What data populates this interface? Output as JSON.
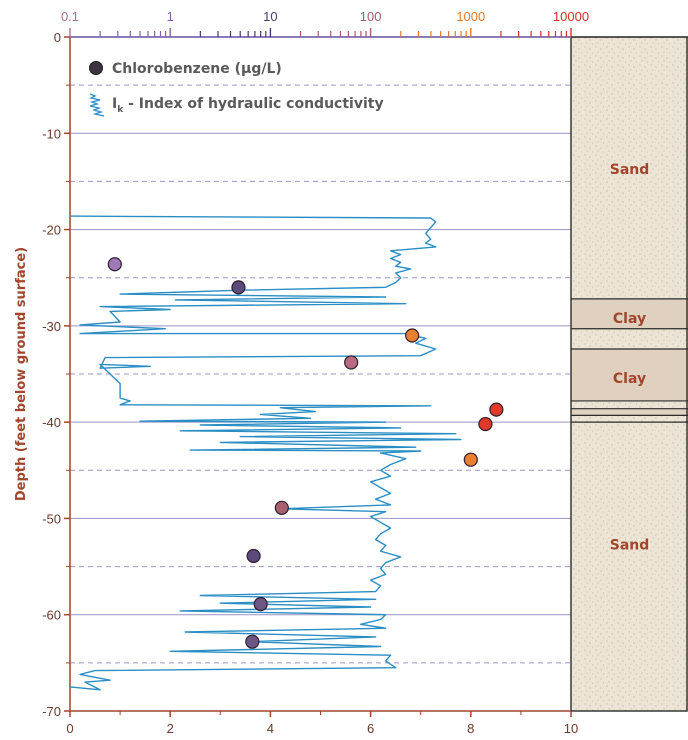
{
  "chart_data": {
    "type": "scatter",
    "ylabel": "Depth (feet below ground surface)",
    "ylim": [
      -70,
      0
    ],
    "yticks": [
      "0",
      "-10",
      "-20",
      "-30",
      "-40",
      "-50",
      "-60",
      "-70"
    ],
    "xlim_bottom": [
      0,
      10
    ],
    "xticks_bottom": [
      "0",
      "2",
      "4",
      "6",
      "8",
      "10"
    ],
    "top_axis": {
      "scale": "log",
      "range": [
        0.1,
        10000
      ],
      "ticks": [
        {
          "label": "0.1",
          "value": 0.1,
          "color": "#b06a9c"
        },
        {
          "label": "1",
          "value": 1,
          "color": "#8a5fa6"
        },
        {
          "label": "10",
          "value": 10,
          "color": "#4b3a72"
        },
        {
          "label": "100",
          "value": 100,
          "color": "#a65a6e"
        },
        {
          "label": "1000",
          "value": 1000,
          "color": "#e07a2a"
        },
        {
          "label": "10000",
          "value": 10000,
          "color": "#d2322a"
        }
      ]
    },
    "legend": {
      "chlorobenzene_label": "Chlorobenzene (µg/L)",
      "ik_label_main": "I",
      "ik_label_sub": "k",
      "ik_label_rest": " - Index of hydraulic conductivity"
    },
    "series": [
      {
        "name": "Chlorobenzene (µg/L)",
        "points": [
          {
            "conc": 0.28,
            "depth": -23.6,
            "color": "#a07ab8"
          },
          {
            "conc": 4.8,
            "depth": -26.0,
            "color": "#5c4a7a"
          },
          {
            "conc": 260,
            "depth": -31.0,
            "color": "#e98031"
          },
          {
            "conc": 64,
            "depth": -33.8,
            "color": "#b86a7e"
          },
          {
            "conc": 1800,
            "depth": -38.7,
            "color": "#e0392b"
          },
          {
            "conc": 1400,
            "depth": -40.2,
            "color": "#e0392b"
          },
          {
            "conc": 1000,
            "depth": -43.9,
            "color": "#e98031"
          },
          {
            "conc": 13,
            "depth": -48.9,
            "color": "#a86070"
          },
          {
            "conc": 6.8,
            "depth": -53.9,
            "color": "#5c4a7a"
          },
          {
            "conc": 8.0,
            "depth": -58.9,
            "color": "#6d5686"
          },
          {
            "conc": 6.6,
            "depth": -62.8,
            "color": "#6d5686"
          }
        ]
      },
      {
        "name": "Ik - Index of hydraulic conductivity",
        "color": "#2a8ec5",
        "points": [
          [
            0.0,
            -67.5
          ],
          [
            0.6,
            -67.8
          ],
          [
            0.3,
            -67.0
          ],
          [
            0.8,
            -66.8
          ],
          [
            0.2,
            -66.2
          ],
          [
            0.5,
            -65.8
          ],
          [
            6.5,
            -65.5
          ],
          [
            6.3,
            -64.8
          ],
          [
            6.4,
            -64.2
          ],
          [
            2.0,
            -63.8
          ],
          [
            6.2,
            -63.3
          ],
          [
            3.6,
            -62.8
          ],
          [
            6.1,
            -62.3
          ],
          [
            2.3,
            -61.8
          ],
          [
            6.3,
            -61.4
          ],
          [
            5.8,
            -61.0
          ],
          [
            6.2,
            -60.5
          ],
          [
            6.3,
            -60.0
          ],
          [
            2.2,
            -59.6
          ],
          [
            6.0,
            -59.2
          ],
          [
            3.0,
            -58.8
          ],
          [
            6.1,
            -58.4
          ],
          [
            2.6,
            -58.0
          ],
          [
            6.1,
            -57.6
          ],
          [
            6.2,
            -57.0
          ],
          [
            6.0,
            -56.4
          ],
          [
            6.3,
            -55.8
          ],
          [
            6.2,
            -55.2
          ],
          [
            6.3,
            -54.6
          ],
          [
            6.6,
            -54.0
          ],
          [
            6.2,
            -53.4
          ],
          [
            6.3,
            -52.8
          ],
          [
            6.1,
            -52.2
          ],
          [
            6.2,
            -51.6
          ],
          [
            6.4,
            -51.0
          ],
          [
            6.2,
            -50.4
          ],
          [
            6.0,
            -49.8
          ],
          [
            6.3,
            -49.3
          ],
          [
            4.2,
            -49.0
          ],
          [
            6.4,
            -48.6
          ],
          [
            6.1,
            -48.0
          ],
          [
            6.4,
            -47.4
          ],
          [
            6.2,
            -46.8
          ],
          [
            6.0,
            -46.2
          ],
          [
            6.4,
            -45.6
          ],
          [
            6.2,
            -45.0
          ],
          [
            6.4,
            -44.4
          ],
          [
            6.7,
            -43.8
          ],
          [
            6.2,
            -43.2
          ],
          [
            7.0,
            -43.0
          ],
          [
            2.4,
            -42.9
          ],
          [
            6.9,
            -42.6
          ],
          [
            3.0,
            -42.1
          ],
          [
            7.8,
            -41.8
          ],
          [
            3.4,
            -41.5
          ],
          [
            7.7,
            -41.2
          ],
          [
            2.2,
            -40.9
          ],
          [
            6.6,
            -40.6
          ],
          [
            2.6,
            -40.3
          ],
          [
            6.3,
            -40.0
          ],
          [
            1.4,
            -39.9
          ],
          [
            4.8,
            -39.6
          ],
          [
            3.8,
            -39.2
          ],
          [
            4.9,
            -38.9
          ],
          [
            4.2,
            -38.5
          ],
          [
            7.2,
            -38.3
          ],
          [
            1.0,
            -38.2
          ],
          [
            1.2,
            -37.8
          ],
          [
            1.0,
            -37.5
          ],
          [
            1.0,
            -36.0
          ],
          [
            0.6,
            -34.0
          ],
          [
            1.6,
            -34.2
          ],
          [
            0.6,
            -34.4
          ],
          [
            0.7,
            -33.3
          ],
          [
            7.0,
            -33.1
          ],
          [
            7.3,
            -32.4
          ],
          [
            6.9,
            -31.8
          ],
          [
            7.1,
            -31.3
          ],
          [
            6.7,
            -30.8
          ],
          [
            0.2,
            -30.8
          ],
          [
            1.9,
            -30.3
          ],
          [
            0.2,
            -29.9
          ],
          [
            1.0,
            -29.6
          ],
          [
            0.8,
            -28.5
          ],
          [
            2.0,
            -28.3
          ],
          [
            0.6,
            -28.0
          ],
          [
            6.7,
            -27.7
          ],
          [
            2.1,
            -27.3
          ],
          [
            6.3,
            -27.0
          ],
          [
            1.0,
            -26.7
          ],
          [
            3.4,
            -26.3
          ],
          [
            6.3,
            -26.0
          ],
          [
            6.5,
            -25.5
          ],
          [
            6.6,
            -25.0
          ],
          [
            6.5,
            -24.5
          ],
          [
            6.8,
            -24.1
          ],
          [
            6.5,
            -23.8
          ],
          [
            6.6,
            -23.4
          ],
          [
            6.4,
            -23.0
          ],
          [
            6.6,
            -22.6
          ],
          [
            6.4,
            -22.2
          ],
          [
            7.3,
            -21.8
          ],
          [
            7.1,
            -21.4
          ],
          [
            7.2,
            -21.0
          ],
          [
            7.1,
            -20.4
          ],
          [
            7.2,
            -19.8
          ],
          [
            7.3,
            -19.2
          ],
          [
            7.2,
            -18.8
          ],
          [
            0.0,
            -18.6
          ]
        ]
      }
    ],
    "grid": {
      "major": [
        -10,
        -20,
        -30,
        -40,
        -50,
        -60
      ],
      "minor": [
        -5,
        -15,
        -25,
        -35,
        -45,
        -55,
        -65
      ]
    },
    "column": {
      "bands": [
        {
          "type": "sand",
          "top": 0,
          "bottom": -27.2
        },
        {
          "type": "clay",
          "top": -27.2,
          "bottom": -30.3
        },
        {
          "type": "sand",
          "top": -30.3,
          "bottom": -32.4
        },
        {
          "type": "clay",
          "top": -32.4,
          "bottom": -37.8
        },
        {
          "type": "sand",
          "top": -37.8,
          "bottom": -38.6
        },
        {
          "type": "clay",
          "top": -38.6,
          "bottom": -39.3
        },
        {
          "type": "sand",
          "top": -39.3,
          "bottom": -40.0
        },
        {
          "type": "sand",
          "top": -40.0,
          "bottom": -70
        }
      ],
      "labels": [
        {
          "text": "Sand",
          "depth": -13.7
        },
        {
          "text": "Clay",
          "depth": -29.2
        },
        {
          "text": "Clay",
          "depth": -35.4
        },
        {
          "text": "Sand",
          "depth": -52.7
        }
      ]
    },
    "colors": {
      "axis": "#a1452b",
      "blue": "#2a8ec5",
      "grid": "#9a94c2",
      "sand": "#ece5d6",
      "clay": "#dfd0bf"
    }
  }
}
